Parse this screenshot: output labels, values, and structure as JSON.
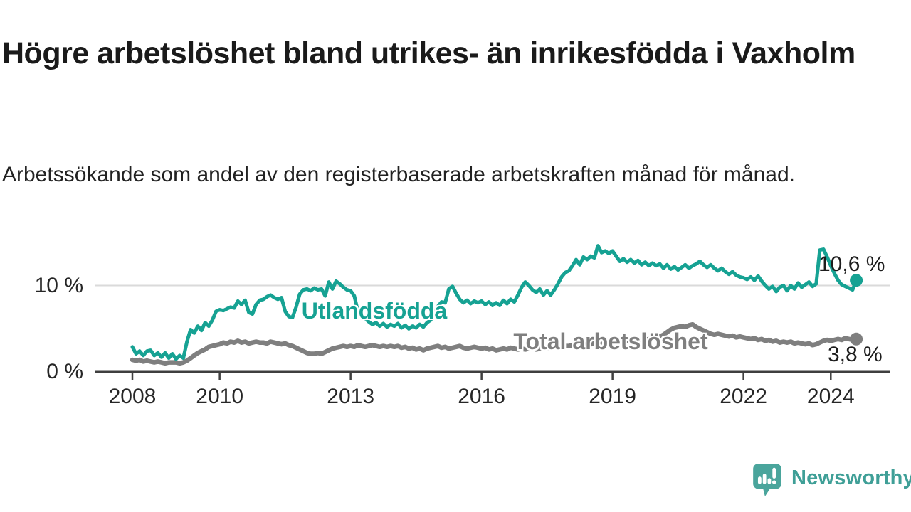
{
  "title": "Högre arbetslöshet bland utrikes- än inrikesfödda i Vaxholm",
  "subtitle": "Arbetssökande som andel av den registerbaserade arbetskraften månad för månad.",
  "branding": {
    "logo_text": "Newsworthy",
    "logo_icon": "speech-bubble-bar-chart-icon",
    "logo_color": "#4aa59c",
    "logo_text_color": "#3f9f97"
  },
  "chart_data": {
    "type": "line",
    "title": "Högre arbetslöshet bland utrikes- än inrikesfödda i Vaxholm",
    "subtitle": "Arbetssökande som andel av den registerbaserade arbetskraften månad för månad.",
    "unit": "%",
    "frequency": "monthly",
    "x_start": {
      "year": 2008,
      "month": 1
    },
    "x_end": {
      "year": 2024,
      "month": 8
    },
    "grid": "horizontal-only",
    "legend_position": "inline-labels",
    "x_axis": {
      "ticks": [
        2008,
        2010,
        2013,
        2016,
        2019,
        2022,
        2024
      ]
    },
    "y_axis": {
      "ticks": [
        {
          "value": 0,
          "label": "0 %"
        },
        {
          "value": 10,
          "label": "10 %"
        }
      ],
      "ylim": [
        0,
        15.5
      ]
    },
    "colors": {
      "axis": "#3f3f3f",
      "gridline": "#dadada",
      "tick_label": "#262626",
      "value_label": "#1d1d1d"
    },
    "series": [
      {
        "name": "Utlandsfödda",
        "color": "#16a293",
        "end_value": 10.6,
        "end_label": "10,6 %",
        "values": [
          2.9,
          2.1,
          2.4,
          1.9,
          2.4,
          2.5,
          1.9,
          2.2,
          1.7,
          2.2,
          1.6,
          2.1,
          1.5,
          1.9,
          1.6,
          3.5,
          4.9,
          4.5,
          5.3,
          4.8,
          5.7,
          5.3,
          6.0,
          7.0,
          7.2,
          7.1,
          7.3,
          7.5,
          7.4,
          8.2,
          7.8,
          8.3,
          6.9,
          6.7,
          7.8,
          8.3,
          8.4,
          8.7,
          8.9,
          8.6,
          8.4,
          8.6,
          7.0,
          6.4,
          6.3,
          7.5,
          9.0,
          9.5,
          9.6,
          9.4,
          9.7,
          9.5,
          9.6,
          8.8,
          10.4,
          9.6,
          10.5,
          10.2,
          9.8,
          9.5,
          9.4,
          8.8,
          7.0,
          6.6,
          6.2,
          5.8,
          5.5,
          5.7,
          5.3,
          5.6,
          5.2,
          5.5,
          5.3,
          5.6,
          5.1,
          5.4,
          5.0,
          5.3,
          5.1,
          5.5,
          5.2,
          5.7,
          6.0,
          6.8,
          7.6,
          8.1,
          8.0,
          9.6,
          9.9,
          9.1,
          8.4,
          8.0,
          8.3,
          7.9,
          8.2,
          8.0,
          8.2,
          7.8,
          8.1,
          7.7,
          8.0,
          7.7,
          8.3,
          7.9,
          8.4,
          8.1,
          8.9,
          9.8,
          10.4,
          10.0,
          9.5,
          9.2,
          9.6,
          8.9,
          9.4,
          8.9,
          9.5,
          10.2,
          11.0,
          11.5,
          11.7,
          12.3,
          13.0,
          12.4,
          13.3,
          13.0,
          13.4,
          13.2,
          14.6,
          13.8,
          14.0,
          13.7,
          14.0,
          13.4,
          12.8,
          13.1,
          12.7,
          13.0,
          12.6,
          12.9,
          12.4,
          12.7,
          12.3,
          12.6,
          12.3,
          12.5,
          12.0,
          12.4,
          11.9,
          12.2,
          11.8,
          12.1,
          12.4,
          12.0,
          12.3,
          12.5,
          12.8,
          12.4,
          12.1,
          12.4,
          12.0,
          11.7,
          12.0,
          11.6,
          11.3,
          11.6,
          11.2,
          11.0,
          10.9,
          10.7,
          11.0,
          10.6,
          11.1,
          10.5,
          10.0,
          9.6,
          9.9,
          9.3,
          9.8,
          10.0,
          9.4,
          10.0,
          9.6,
          10.3,
          9.8,
          10.1,
          10.4,
          9.9,
          10.2,
          14.1,
          14.2,
          13.3,
          12.3,
          11.4,
          10.6,
          10.1,
          9.9,
          9.7,
          9.5,
          10.6
        ]
      },
      {
        "name": "Total arbetslöshet",
        "color": "#7f7f7f",
        "end_value": 3.8,
        "end_label": "3,8 %",
        "values": [
          1.4,
          1.3,
          1.4,
          1.2,
          1.3,
          1.2,
          1.1,
          1.2,
          1.1,
          1.0,
          1.1,
          1.1,
          1.1,
          1.0,
          1.1,
          1.3,
          1.6,
          1.9,
          2.2,
          2.4,
          2.6,
          2.9,
          3.0,
          3.1,
          3.2,
          3.4,
          3.3,
          3.5,
          3.4,
          3.6,
          3.4,
          3.5,
          3.3,
          3.4,
          3.5,
          3.4,
          3.4,
          3.3,
          3.5,
          3.4,
          3.3,
          3.2,
          3.3,
          3.1,
          3.0,
          2.8,
          2.6,
          2.4,
          2.2,
          2.1,
          2.1,
          2.2,
          2.1,
          2.3,
          2.5,
          2.7,
          2.8,
          2.9,
          3.0,
          2.9,
          3.0,
          2.9,
          3.1,
          3.0,
          2.9,
          3.0,
          3.1,
          3.0,
          2.9,
          3.0,
          2.9,
          3.0,
          2.9,
          3.0,
          2.8,
          2.9,
          2.7,
          2.8,
          2.6,
          2.7,
          2.5,
          2.7,
          2.8,
          2.9,
          3.0,
          2.8,
          2.9,
          2.7,
          2.8,
          2.9,
          3.0,
          2.8,
          2.7,
          2.8,
          2.9,
          2.8,
          2.7,
          2.8,
          2.6,
          2.7,
          2.5,
          2.6,
          2.7,
          2.6,
          2.8,
          2.7,
          2.6,
          2.7,
          2.6,
          2.7,
          2.8,
          2.6,
          2.7,
          2.8,
          2.7,
          2.8,
          2.9,
          2.8,
          2.9,
          3.0,
          3.0,
          3.1,
          3.0,
          3.1,
          3.2,
          3.1,
          3.2,
          3.3,
          3.2,
          3.3,
          3.4,
          3.4,
          3.4,
          3.5,
          3.4,
          3.5,
          3.6,
          3.5,
          3.6,
          3.7,
          3.6,
          3.7,
          3.8,
          3.9,
          4.0,
          4.1,
          4.3,
          4.6,
          4.9,
          5.1,
          5.2,
          5.3,
          5.2,
          5.4,
          5.5,
          5.2,
          5.0,
          4.8,
          4.6,
          4.4,
          4.3,
          4.4,
          4.3,
          4.2,
          4.1,
          4.2,
          4.0,
          4.1,
          4.0,
          3.9,
          3.8,
          3.9,
          3.7,
          3.8,
          3.6,
          3.7,
          3.5,
          3.6,
          3.4,
          3.5,
          3.4,
          3.5,
          3.3,
          3.4,
          3.3,
          3.2,
          3.3,
          3.1,
          3.2,
          3.4,
          3.6,
          3.7,
          3.6,
          3.7,
          3.8,
          3.7,
          3.9,
          3.8,
          3.7,
          3.8
        ]
      }
    ]
  }
}
